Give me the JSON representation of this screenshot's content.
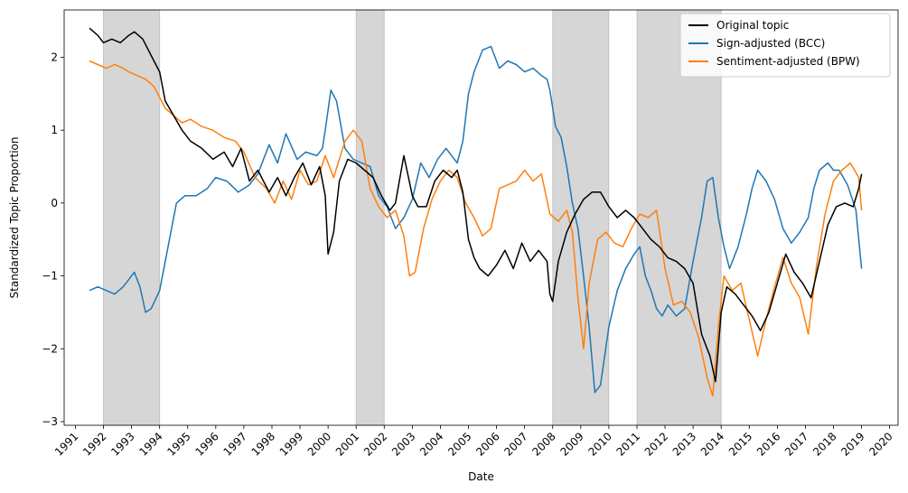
{
  "chart_data": {
    "type": "line",
    "title": "",
    "xlabel": "Date",
    "ylabel": "Standardized Topic Proportion",
    "xlim": [
      1990.6,
      2020.3
    ],
    "ylim": [
      -3.05,
      2.65
    ],
    "x_ticks": [
      "1991",
      "1992",
      "1993",
      "1994",
      "1995",
      "1996",
      "1997",
      "1998",
      "1999",
      "2000",
      "2001",
      "2002",
      "2003",
      "2004",
      "2005",
      "2006",
      "2007",
      "2008",
      "2009",
      "2010",
      "2011",
      "2012",
      "2013",
      "2014",
      "2015",
      "2016",
      "2017",
      "2018",
      "2019",
      "2020"
    ],
    "y_ticks": [
      -3,
      -2,
      -1,
      0,
      1,
      2
    ],
    "y_tick_labels": [
      "−3",
      "−2",
      "−1",
      "0",
      "1",
      "2"
    ],
    "grid": false,
    "legend_position": "top-right",
    "shaded_periods": [
      [
        1992.0,
        1994.0
      ],
      [
        2001.0,
        2002.0
      ],
      [
        2008.0,
        2010.0
      ],
      [
        2011.0,
        2014.0
      ]
    ],
    "series": [
      {
        "name": "Original topic",
        "color": "#000000",
        "x": [
          1991.5,
          1991.8,
          1992.0,
          1992.3,
          1992.6,
          1992.9,
          1993.1,
          1993.4,
          1993.6,
          1993.8,
          1994.0,
          1994.2,
          1994.5,
          1994.8,
          1995.1,
          1995.5,
          1995.9,
          1996.3,
          1996.6,
          1996.9,
          1997.2,
          1997.5,
          1997.9,
          1998.2,
          1998.5,
          1998.8,
          1999.1,
          1999.4,
          1999.7,
          1999.9,
          2000.0,
          2000.2,
          2000.4,
          2000.7,
          2001.0,
          2001.3,
          2001.6,
          2001.9,
          2002.2,
          2002.4,
          2002.7,
          2003.0,
          2003.2,
          2003.5,
          2003.8,
          2004.1,
          2004.4,
          2004.6,
          2004.8,
          2005.0,
          2005.2,
          2005.4,
          2005.7,
          2006.0,
          2006.3,
          2006.6,
          2006.9,
          2007.2,
          2007.5,
          2007.8,
          2007.9,
          2008.0,
          2008.2,
          2008.5,
          2008.8,
          2009.1,
          2009.4,
          2009.7,
          2010.0,
          2010.3,
          2010.6,
          2010.9,
          2011.2,
          2011.5,
          2011.8,
          2012.1,
          2012.4,
          2012.7,
          2013.0,
          2013.3,
          2013.6,
          2013.8,
          2014.0,
          2014.2,
          2014.5,
          2014.8,
          2015.1,
          2015.4,
          2015.7,
          2016.0,
          2016.3,
          2016.6,
          2016.9,
          2017.2,
          2017.5,
          2017.8,
          2018.1,
          2018.4,
          2018.7,
          2018.9,
          2019.0
        ],
        "y": [
          2.4,
          2.3,
          2.2,
          2.25,
          2.2,
          2.3,
          2.35,
          2.25,
          2.1,
          1.95,
          1.8,
          1.4,
          1.2,
          1.0,
          0.85,
          0.75,
          0.6,
          0.7,
          0.5,
          0.75,
          0.3,
          0.45,
          0.15,
          0.35,
          0.1,
          0.35,
          0.55,
          0.25,
          0.5,
          0.1,
          -0.7,
          -0.4,
          0.3,
          0.6,
          0.55,
          0.45,
          0.35,
          0.1,
          -0.1,
          0.0,
          0.65,
          0.1,
          -0.05,
          -0.05,
          0.3,
          0.45,
          0.35,
          0.45,
          0.15,
          -0.5,
          -0.75,
          -0.9,
          -1.0,
          -0.85,
          -0.65,
          -0.9,
          -0.55,
          -0.8,
          -0.65,
          -0.8,
          -1.25,
          -1.35,
          -0.8,
          -0.4,
          -0.15,
          0.05,
          0.15,
          0.15,
          -0.05,
          -0.2,
          -0.1,
          -0.2,
          -0.35,
          -0.5,
          -0.6,
          -0.75,
          -0.8,
          -0.9,
          -1.1,
          -1.8,
          -2.1,
          -2.45,
          -1.5,
          -1.15,
          -1.25,
          -1.4,
          -1.55,
          -1.75,
          -1.5,
          -1.1,
          -0.7,
          -0.95,
          -1.1,
          -1.3,
          -0.8,
          -0.3,
          -0.05,
          0.0,
          -0.05,
          0.2,
          0.4
        ]
      },
      {
        "name": "Sign-adjusted (BCC)",
        "color": "#1f77b4",
        "x": [
          1991.5,
          1991.8,
          1992.1,
          1992.4,
          1992.7,
          1992.9,
          1993.1,
          1993.3,
          1993.5,
          1993.7,
          1994.0,
          1994.3,
          1994.6,
          1994.9,
          1995.3,
          1995.7,
          1996.0,
          1996.4,
          1996.8,
          1997.2,
          1997.5,
          1997.9,
          1998.2,
          1998.5,
          1998.9,
          1999.2,
          1999.6,
          1999.8,
          1999.9,
          2000.1,
          2000.3,
          2000.6,
          2000.9,
          2001.2,
          2001.5,
          2001.8,
          2002.1,
          2002.4,
          2002.7,
          2003.0,
          2003.3,
          2003.6,
          2003.9,
          2004.2,
          2004.4,
          2004.6,
          2004.8,
          2005.0,
          2005.2,
          2005.5,
          2005.8,
          2006.1,
          2006.4,
          2006.7,
          2007.0,
          2007.3,
          2007.6,
          2007.8,
          2007.9,
          2008.1,
          2008.3,
          2008.5,
          2008.7,
          2008.9,
          2009.1,
          2009.3,
          2009.5,
          2009.7,
          2010.0,
          2010.3,
          2010.6,
          2010.9,
          2011.1,
          2011.3,
          2011.5,
          2011.7,
          2011.9,
          2012.1,
          2012.4,
          2012.7,
          2013.0,
          2013.3,
          2013.5,
          2013.7,
          2013.9,
          2014.1,
          2014.3,
          2014.6,
          2014.9,
          2015.1,
          2015.3,
          2015.6,
          2015.9,
          2016.2,
          2016.5,
          2016.8,
          2017.1,
          2017.3,
          2017.5,
          2017.8,
          2018.0,
          2018.2,
          2018.5,
          2018.8,
          2019.0
        ],
        "y": [
          -1.2,
          -1.15,
          -1.2,
          -1.25,
          -1.15,
          -1.05,
          -0.95,
          -1.15,
          -1.5,
          -1.45,
          -1.2,
          -0.6,
          0.0,
          0.1,
          0.1,
          0.2,
          0.35,
          0.3,
          0.15,
          0.25,
          0.4,
          0.8,
          0.55,
          0.95,
          0.6,
          0.7,
          0.65,
          0.75,
          1.0,
          1.55,
          1.4,
          0.75,
          0.6,
          0.55,
          0.5,
          0.1,
          -0.05,
          -0.35,
          -0.2,
          0.05,
          0.55,
          0.35,
          0.6,
          0.75,
          0.65,
          0.55,
          0.85,
          1.5,
          1.8,
          2.1,
          2.15,
          1.85,
          1.95,
          1.9,
          1.8,
          1.85,
          1.75,
          1.7,
          1.55,
          1.05,
          0.9,
          0.5,
          0.0,
          -0.35,
          -1.0,
          -1.7,
          -2.6,
          -2.5,
          -1.7,
          -1.2,
          -0.9,
          -0.7,
          -0.6,
          -1.0,
          -1.2,
          -1.45,
          -1.55,
          -1.4,
          -1.55,
          -1.45,
          -0.8,
          -0.2,
          0.3,
          0.35,
          -0.2,
          -0.6,
          -0.9,
          -0.6,
          -0.15,
          0.2,
          0.45,
          0.3,
          0.05,
          -0.35,
          -0.55,
          -0.4,
          -0.2,
          0.2,
          0.45,
          0.55,
          0.45,
          0.45,
          0.25,
          -0.1,
          -0.9
        ]
      },
      {
        "name": "Sentiment-adjusted (BPW)",
        "color": "#ff7f0e",
        "x": [
          1991.5,
          1991.8,
          1992.1,
          1992.4,
          1992.7,
          1992.9,
          1993.2,
          1993.5,
          1993.8,
          1994.0,
          1994.2,
          1994.5,
          1994.8,
          1995.1,
          1995.5,
          1995.9,
          1996.3,
          1996.7,
          1997.0,
          1997.4,
          1997.8,
          1998.1,
          1998.4,
          1998.7,
          1999.0,
          1999.3,
          1999.6,
          1999.9,
          2000.2,
          2000.6,
          2000.9,
          2001.2,
          2001.5,
          2001.8,
          2002.1,
          2002.4,
          2002.7,
          2002.9,
          2003.1,
          2003.4,
          2003.7,
          2004.0,
          2004.3,
          2004.6,
          2004.9,
          2005.2,
          2005.5,
          2005.8,
          2006.1,
          2006.4,
          2006.7,
          2007.0,
          2007.3,
          2007.6,
          2007.9,
          2008.2,
          2008.5,
          2008.7,
          2008.9,
          2009.1,
          2009.3,
          2009.6,
          2009.9,
          2010.2,
          2010.5,
          2010.8,
          2011.1,
          2011.4,
          2011.7,
          2012.0,
          2012.3,
          2012.6,
          2012.9,
          2013.2,
          2013.5,
          2013.7,
          2013.9,
          2014.1,
          2014.4,
          2014.7,
          2015.0,
          2015.3,
          2015.6,
          2015.9,
          2016.2,
          2016.5,
          2016.8,
          2017.1,
          2017.4,
          2017.7,
          2018.0,
          2018.3,
          2018.6,
          2018.9,
          2019.0
        ],
        "y": [
          1.95,
          1.9,
          1.85,
          1.9,
          1.85,
          1.8,
          1.75,
          1.7,
          1.6,
          1.45,
          1.3,
          1.2,
          1.1,
          1.15,
          1.05,
          1.0,
          0.9,
          0.85,
          0.7,
          0.35,
          0.2,
          0.0,
          0.3,
          0.05,
          0.45,
          0.25,
          0.3,
          0.65,
          0.35,
          0.85,
          1.0,
          0.85,
          0.2,
          -0.05,
          -0.2,
          -0.1,
          -0.45,
          -1.0,
          -0.95,
          -0.35,
          0.05,
          0.3,
          0.45,
          0.35,
          0.0,
          -0.2,
          -0.45,
          -0.35,
          0.2,
          0.25,
          0.3,
          0.45,
          0.3,
          0.4,
          -0.15,
          -0.25,
          -0.1,
          -0.4,
          -1.3,
          -2.0,
          -1.1,
          -0.5,
          -0.4,
          -0.55,
          -0.6,
          -0.35,
          -0.15,
          -0.2,
          -0.1,
          -0.9,
          -1.4,
          -1.35,
          -1.5,
          -1.85,
          -2.4,
          -2.65,
          -1.7,
          -1.0,
          -1.2,
          -1.1,
          -1.6,
          -2.1,
          -1.6,
          -1.15,
          -0.75,
          -1.1,
          -1.3,
          -1.8,
          -0.85,
          -0.15,
          0.3,
          0.45,
          0.55,
          0.35,
          -0.1
        ]
      }
    ]
  }
}
